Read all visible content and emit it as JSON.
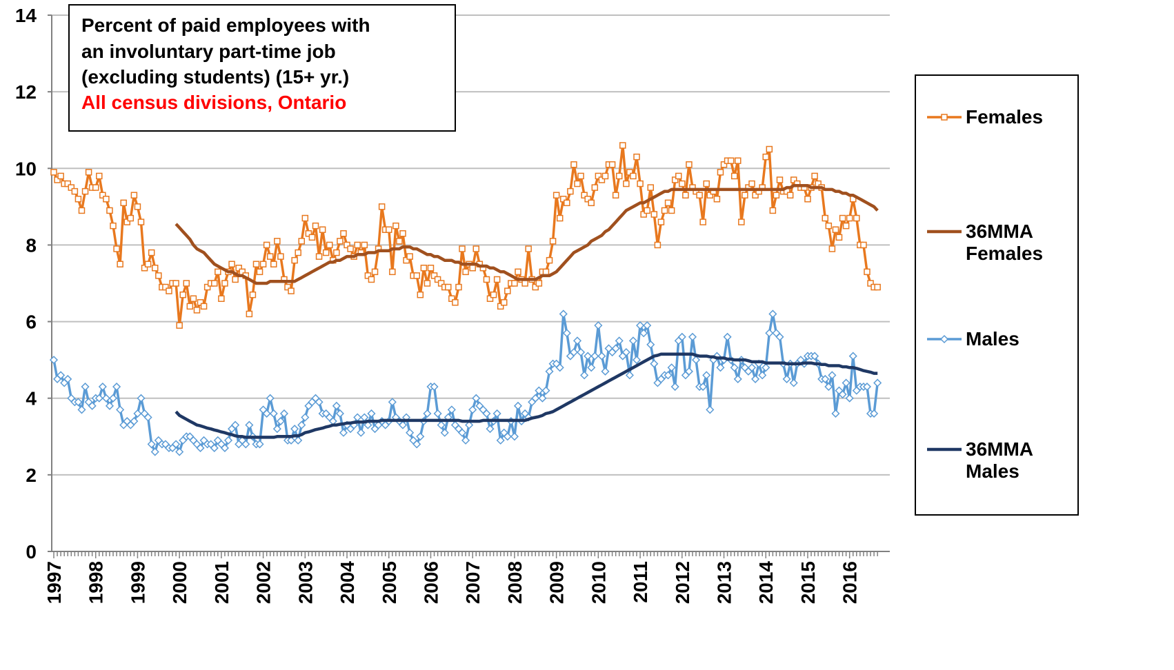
{
  "chart_data": {
    "type": "line",
    "title": [
      "Percent of paid employees with",
      "an involuntary part-time job",
      "(excluding students) (15+ yr.)"
    ],
    "subtitle": "All census divisions, Ontario",
    "ylim": [
      0,
      14
    ],
    "yticks": [
      0,
      2,
      4,
      6,
      8,
      10,
      12,
      14
    ],
    "grid": true,
    "legend": "right",
    "categories": [
      "1997",
      null,
      null,
      null,
      null,
      null,
      null,
      null,
      null,
      null,
      null,
      null,
      "1998",
      null,
      null,
      null,
      null,
      null,
      null,
      null,
      null,
      null,
      null,
      null,
      "1999",
      null,
      null,
      null,
      null,
      null,
      null,
      null,
      null,
      null,
      null,
      null,
      "2000",
      null,
      null,
      null,
      null,
      null,
      null,
      null,
      null,
      null,
      null,
      null,
      "2001",
      null,
      null,
      null,
      null,
      null,
      null,
      null,
      null,
      null,
      null,
      null,
      "2002",
      null,
      null,
      null,
      null,
      null,
      null,
      null,
      null,
      null,
      null,
      null,
      "2003",
      null,
      null,
      null,
      null,
      null,
      null,
      null,
      null,
      null,
      null,
      null,
      "2004",
      null,
      null,
      null,
      null,
      null,
      null,
      null,
      null,
      null,
      null,
      null,
      "2005",
      null,
      null,
      null,
      null,
      null,
      null,
      null,
      null,
      null,
      null,
      null,
      "2006",
      null,
      null,
      null,
      null,
      null,
      null,
      null,
      null,
      null,
      null,
      null,
      "2007",
      null,
      null,
      null,
      null,
      null,
      null,
      null,
      null,
      null,
      null,
      null,
      "2008",
      null,
      null,
      null,
      null,
      null,
      null,
      null,
      null,
      null,
      null,
      null,
      "2009",
      null,
      null,
      null,
      null,
      null,
      null,
      null,
      null,
      null,
      null,
      null,
      "2010",
      null,
      null,
      null,
      null,
      null,
      null,
      null,
      null,
      null,
      null,
      null,
      "2011",
      null,
      null,
      null,
      null,
      null,
      null,
      null,
      null,
      null,
      null,
      null,
      "2012",
      null,
      null,
      null,
      null,
      null,
      null,
      null,
      null,
      null,
      null,
      null,
      "2013",
      null,
      null,
      null,
      null,
      null,
      null,
      null,
      null,
      null,
      null,
      null,
      "2014",
      null,
      null,
      null,
      null,
      null,
      null,
      null,
      null,
      null,
      null,
      null,
      "2015",
      null,
      null,
      null,
      null,
      null,
      null,
      null,
      null,
      null,
      null,
      null,
      "2016",
      null,
      null,
      null,
      null,
      null,
      null,
      null,
      null
    ],
    "series": [
      {
        "name": "Females",
        "color": "#E8781E",
        "marker": "square",
        "values": [
          9.9,
          9.7,
          9.8,
          9.6,
          9.6,
          9.5,
          9.4,
          9.2,
          8.9,
          9.4,
          9.9,
          9.5,
          9.5,
          9.8,
          9.3,
          9.2,
          8.9,
          8.5,
          7.9,
          7.5,
          9.1,
          8.6,
          8.7,
          9.3,
          9.0,
          8.6,
          7.4,
          7.5,
          7.8,
          7.4,
          7.2,
          6.9,
          6.9,
          6.8,
          7.0,
          7.0,
          5.9,
          6.7,
          7.0,
          6.4,
          6.6,
          6.3,
          6.5,
          6.4,
          6.9,
          7.0,
          7.0,
          7.3,
          6.6,
          7.0,
          7.3,
          7.5,
          7.1,
          7.4,
          7.3,
          7.2,
          6.2,
          6.7,
          7.5,
          7.3,
          7.5,
          8.0,
          7.7,
          7.5,
          8.1,
          7.7,
          7.1,
          6.9,
          6.8,
          7.6,
          7.8,
          8.1,
          8.7,
          8.3,
          8.2,
          8.5,
          7.7,
          8.4,
          7.8,
          8.0,
          7.6,
          7.8,
          8.1,
          8.3,
          8.0,
          7.9,
          7.7,
          8.0,
          7.8,
          8.0,
          7.2,
          7.1,
          7.3,
          7.9,
          9.0,
          8.4,
          8.4,
          7.3,
          8.5,
          8.1,
          8.3,
          7.6,
          7.7,
          7.2,
          7.2,
          6.7,
          7.4,
          7.0,
          7.4,
          7.2,
          7.1,
          7.0,
          6.9,
          6.9,
          6.6,
          6.5,
          6.9,
          7.9,
          7.3,
          7.5,
          7.4,
          7.9,
          7.5,
          7.4,
          7.1,
          6.6,
          6.7,
          7.1,
          6.4,
          6.5,
          6.8,
          7.0,
          7.0,
          7.3,
          7.1,
          7.0,
          7.9,
          7.1,
          6.9,
          7.0,
          7.3,
          7.3,
          7.6,
          8.1,
          9.3,
          8.7,
          9.2,
          9.1,
          9.4,
          10.1,
          9.6,
          9.8,
          9.3,
          9.2,
          9.1,
          9.5,
          9.8,
          9.7,
          9.8,
          10.1,
          10.1,
          9.3,
          9.8,
          10.6,
          9.6,
          9.9,
          9.8,
          10.3,
          9.6,
          8.8,
          8.9,
          9.5,
          8.8,
          8.0,
          8.6,
          8.9,
          9.1,
          8.9,
          9.7,
          9.8,
          9.6,
          9.3,
          10.1,
          9.5,
          9.4,
          9.3,
          8.6,
          9.6,
          9.3,
          9.4,
          9.2,
          9.9,
          10.1,
          10.2,
          10.2,
          9.8,
          10.2,
          8.6,
          9.3,
          9.5,
          9.6,
          9.3,
          9.4,
          9.5,
          10.3,
          10.5,
          8.9,
          9.3,
          9.7,
          9.4,
          9.4,
          9.3,
          9.7,
          9.6,
          9.5,
          9.5,
          9.2,
          9.5,
          9.8,
          9.6,
          9.5,
          8.7,
          8.5,
          7.9,
          8.4,
          8.2,
          8.7,
          8.5,
          8.7,
          9.2,
          8.7,
          8.0,
          8.0,
          7.3,
          7.0,
          6.9,
          6.9
        ]
      },
      {
        "name": "36MMA Females",
        "color": "#A0501E",
        "values": [
          null,
          null,
          null,
          null,
          null,
          null,
          null,
          null,
          null,
          null,
          null,
          null,
          null,
          null,
          null,
          null,
          null,
          null,
          null,
          null,
          null,
          null,
          null,
          null,
          null,
          null,
          null,
          null,
          null,
          null,
          null,
          null,
          null,
          null,
          null,
          8.55,
          8.45,
          8.35,
          8.25,
          8.15,
          8.0,
          7.9,
          7.85,
          7.8,
          7.7,
          7.6,
          7.5,
          7.45,
          7.4,
          7.35,
          7.3,
          7.3,
          7.25,
          7.2,
          7.2,
          7.15,
          7.1,
          7.05,
          7.0,
          7.0,
          7.0,
          7.0,
          7.05,
          7.05,
          7.05,
          7.05,
          7.05,
          7.05,
          7.05,
          7.05,
          7.1,
          7.15,
          7.2,
          7.25,
          7.3,
          7.35,
          7.4,
          7.45,
          7.5,
          7.55,
          7.55,
          7.6,
          7.6,
          7.65,
          7.7,
          7.7,
          7.7,
          7.75,
          7.75,
          7.75,
          7.8,
          7.8,
          7.8,
          7.85,
          7.85,
          7.85,
          7.85,
          7.9,
          7.9,
          7.9,
          7.95,
          7.95,
          7.95,
          7.9,
          7.9,
          7.85,
          7.8,
          7.75,
          7.75,
          7.7,
          7.7,
          7.65,
          7.6,
          7.6,
          7.6,
          7.55,
          7.55,
          7.5,
          7.5,
          7.5,
          7.5,
          7.5,
          7.45,
          7.45,
          7.45,
          7.4,
          7.4,
          7.35,
          7.3,
          7.3,
          7.25,
          7.2,
          7.15,
          7.1,
          7.1,
          7.1,
          7.1,
          7.1,
          7.1,
          7.15,
          7.2,
          7.2,
          7.2,
          7.25,
          7.3,
          7.4,
          7.5,
          7.6,
          7.7,
          7.8,
          7.85,
          7.9,
          7.95,
          8.0,
          8.1,
          8.15,
          8.2,
          8.25,
          8.35,
          8.4,
          8.5,
          8.6,
          8.7,
          8.8,
          8.9,
          8.95,
          9.0,
          9.05,
          9.1,
          9.1,
          9.15,
          9.2,
          9.25,
          9.3,
          9.35,
          9.4,
          9.4,
          9.45,
          9.45,
          9.45,
          9.45,
          9.45,
          9.45,
          9.45,
          9.45,
          9.45,
          9.45,
          9.45,
          9.45,
          9.45,
          9.45,
          9.45,
          9.45,
          9.45,
          9.45,
          9.45,
          9.45,
          9.45,
          9.45,
          9.45,
          9.45,
          9.45,
          9.45,
          9.45,
          9.45,
          9.45,
          9.45,
          9.45,
          9.45,
          9.45,
          9.5,
          9.5,
          9.55,
          9.55,
          9.55,
          9.55,
          9.55,
          9.5,
          9.5,
          9.5,
          9.5,
          9.45,
          9.45,
          9.45,
          9.4,
          9.4,
          9.35,
          9.35,
          9.3,
          9.3,
          9.25,
          9.2,
          9.15,
          9.1,
          9.05,
          9.0,
          8.9
        ]
      },
      {
        "name": "Males",
        "color": "#5B9BD5",
        "marker": "diamond",
        "values": [
          5.0,
          4.5,
          4.6,
          4.4,
          4.5,
          4.0,
          3.9,
          3.9,
          3.7,
          4.3,
          3.9,
          3.8,
          4.0,
          4.0,
          4.3,
          4.0,
          3.8,
          4.0,
          4.3,
          3.7,
          3.3,
          3.4,
          3.3,
          3.4,
          3.6,
          4.0,
          3.6,
          3.5,
          2.8,
          2.6,
          2.9,
          2.8,
          2.8,
          2.7,
          2.7,
          2.8,
          2.6,
          2.9,
          3.0,
          3.0,
          2.9,
          2.8,
          2.7,
          2.9,
          2.8,
          2.8,
          2.7,
          2.9,
          2.8,
          2.7,
          2.9,
          3.2,
          3.3,
          2.8,
          2.9,
          2.8,
          3.3,
          3.0,
          2.8,
          2.8,
          3.7,
          3.6,
          4.0,
          3.6,
          3.2,
          3.4,
          3.6,
          2.9,
          2.9,
          3.2,
          2.9,
          3.3,
          3.5,
          3.8,
          3.9,
          4.0,
          3.9,
          3.6,
          3.6,
          3.5,
          3.4,
          3.8,
          3.6,
          3.1,
          3.3,
          3.2,
          3.3,
          3.5,
          3.1,
          3.5,
          3.3,
          3.6,
          3.2,
          3.3,
          3.4,
          3.3,
          3.4,
          3.9,
          3.5,
          3.4,
          3.3,
          3.5,
          3.1,
          2.9,
          2.8,
          3.0,
          3.4,
          3.6,
          4.3,
          4.3,
          3.6,
          3.3,
          3.1,
          3.5,
          3.7,
          3.3,
          3.2,
          3.1,
          2.9,
          3.3,
          3.7,
          4.0,
          3.8,
          3.7,
          3.6,
          3.2,
          3.4,
          3.6,
          2.9,
          3.1,
          3.0,
          3.4,
          3.0,
          3.8,
          3.4,
          3.6,
          3.5,
          3.9,
          4.0,
          4.2,
          4.0,
          4.2,
          4.7,
          4.9,
          4.9,
          4.8,
          6.2,
          5.7,
          5.1,
          5.2,
          5.5,
          5.2,
          4.6,
          5.1,
          4.8,
          5.1,
          5.9,
          5.1,
          4.7,
          5.3,
          5.2,
          5.3,
          5.5,
          5.1,
          5.2,
          4.6,
          5.5,
          5.0,
          5.9,
          5.7,
          5.9,
          5.4,
          4.9,
          4.4,
          4.5,
          4.6,
          4.6,
          4.8,
          4.3,
          5.5,
          5.6,
          4.6,
          4.7,
          5.6,
          5.0,
          4.3,
          4.3,
          4.6,
          3.7,
          5.0,
          5.1,
          4.8,
          5.0,
          5.6,
          5.0,
          4.8,
          4.5,
          5.0,
          4.8,
          4.7,
          4.8,
          4.5,
          4.9,
          4.6,
          4.8,
          5.7,
          6.2,
          5.7,
          5.6,
          4.9,
          4.5,
          4.9,
          4.4,
          4.9,
          5.0,
          4.9,
          5.1,
          5.1,
          5.1,
          4.9,
          4.5,
          4.5,
          4.3,
          4.6,
          3.6,
          4.2,
          4.1,
          4.4,
          4.0,
          5.1,
          4.2,
          4.3,
          4.3,
          4.3,
          3.6,
          3.6,
          4.4
        ]
      },
      {
        "name": "36MMA Males",
        "color": "#1F3864",
        "values": [
          null,
          null,
          null,
          null,
          null,
          null,
          null,
          null,
          null,
          null,
          null,
          null,
          null,
          null,
          null,
          null,
          null,
          null,
          null,
          null,
          null,
          null,
          null,
          null,
          null,
          null,
          null,
          null,
          null,
          null,
          null,
          null,
          null,
          null,
          null,
          3.65,
          3.55,
          3.5,
          3.45,
          3.4,
          3.35,
          3.3,
          3.28,
          3.25,
          3.22,
          3.2,
          3.17,
          3.15,
          3.12,
          3.1,
          3.07,
          3.05,
          3.02,
          3.0,
          3.0,
          2.98,
          2.98,
          2.98,
          2.98,
          2.98,
          2.98,
          2.98,
          2.98,
          2.98,
          3.0,
          3.0,
          3.0,
          3.0,
          3.0,
          3.02,
          3.02,
          3.05,
          3.1,
          3.12,
          3.15,
          3.18,
          3.2,
          3.22,
          3.25,
          3.27,
          3.3,
          3.3,
          3.32,
          3.33,
          3.35,
          3.35,
          3.37,
          3.38,
          3.38,
          3.38,
          3.4,
          3.4,
          3.4,
          3.4,
          3.42,
          3.42,
          3.42,
          3.42,
          3.42,
          3.42,
          3.42,
          3.42,
          3.42,
          3.42,
          3.42,
          3.42,
          3.42,
          3.42,
          3.42,
          3.42,
          3.42,
          3.42,
          3.42,
          3.42,
          3.42,
          3.42,
          3.42,
          3.4,
          3.4,
          3.4,
          3.4,
          3.4,
          3.4,
          3.42,
          3.42,
          3.42,
          3.42,
          3.42,
          3.42,
          3.42,
          3.42,
          3.42,
          3.42,
          3.42,
          3.42,
          3.42,
          3.45,
          3.48,
          3.5,
          3.52,
          3.55,
          3.6,
          3.62,
          3.65,
          3.7,
          3.75,
          3.8,
          3.85,
          3.9,
          3.95,
          4.0,
          4.05,
          4.1,
          4.15,
          4.2,
          4.25,
          4.3,
          4.35,
          4.4,
          4.45,
          4.5,
          4.55,
          4.6,
          4.65,
          4.7,
          4.75,
          4.8,
          4.85,
          4.9,
          4.95,
          5.0,
          5.05,
          5.1,
          5.12,
          5.15,
          5.15,
          5.15,
          5.15,
          5.15,
          5.15,
          5.15,
          5.15,
          5.15,
          5.15,
          5.12,
          5.1,
          5.1,
          5.1,
          5.08,
          5.08,
          5.05,
          5.05,
          5.05,
          5.02,
          5.02,
          5.0,
          5.0,
          5.0,
          5.0,
          4.98,
          4.95,
          4.95,
          4.95,
          4.95,
          4.92,
          4.92,
          4.92,
          4.92,
          4.92,
          4.92,
          4.9,
          4.9,
          4.9,
          4.9,
          4.9,
          4.92,
          4.92,
          4.92,
          4.9,
          4.9,
          4.88,
          4.88,
          4.85,
          4.85,
          4.85,
          4.85,
          4.82,
          4.82,
          4.8,
          4.8,
          4.78,
          4.75,
          4.72,
          4.7,
          4.68,
          4.65,
          4.65
        ]
      }
    ]
  }
}
